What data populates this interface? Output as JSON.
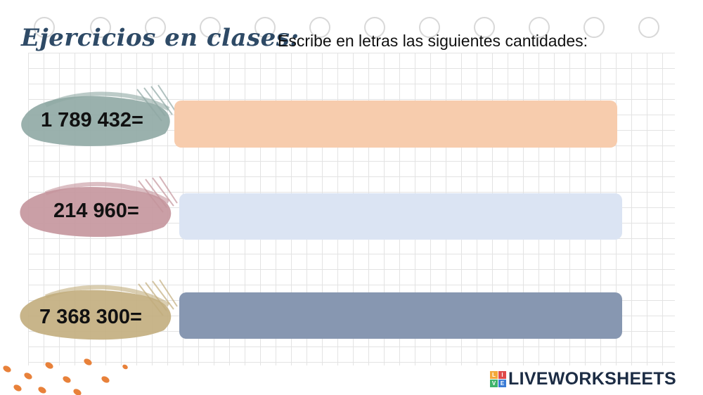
{
  "title": "Ejercicios en clases:",
  "subtitle": "Escribe en letras las siguientes cantidades:",
  "rows": [
    {
      "label": "1 789 432=",
      "answer": "",
      "box_color": "#f7ccad",
      "brush_color": "#8fa8a4"
    },
    {
      "label": "214 960=",
      "answer": "",
      "box_color": "#dbe4f3",
      "brush_color": "#c4959c"
    },
    {
      "label": "7 368 300=",
      "answer": "",
      "box_color": "#8797b1",
      "brush_color": "#c2ad7d"
    }
  ],
  "logo": {
    "text": "LIVEWORKSHEETS",
    "mark_letters": [
      "L",
      "I",
      "V",
      "E"
    ],
    "mark_colors": [
      "#f3a83b",
      "#e04a4a",
      "#3db36b",
      "#3a7bd5"
    ]
  },
  "colors": {
    "title": "#2e4a66",
    "grid": "#e3e3e3",
    "orange_dots": "#e8813a"
  }
}
